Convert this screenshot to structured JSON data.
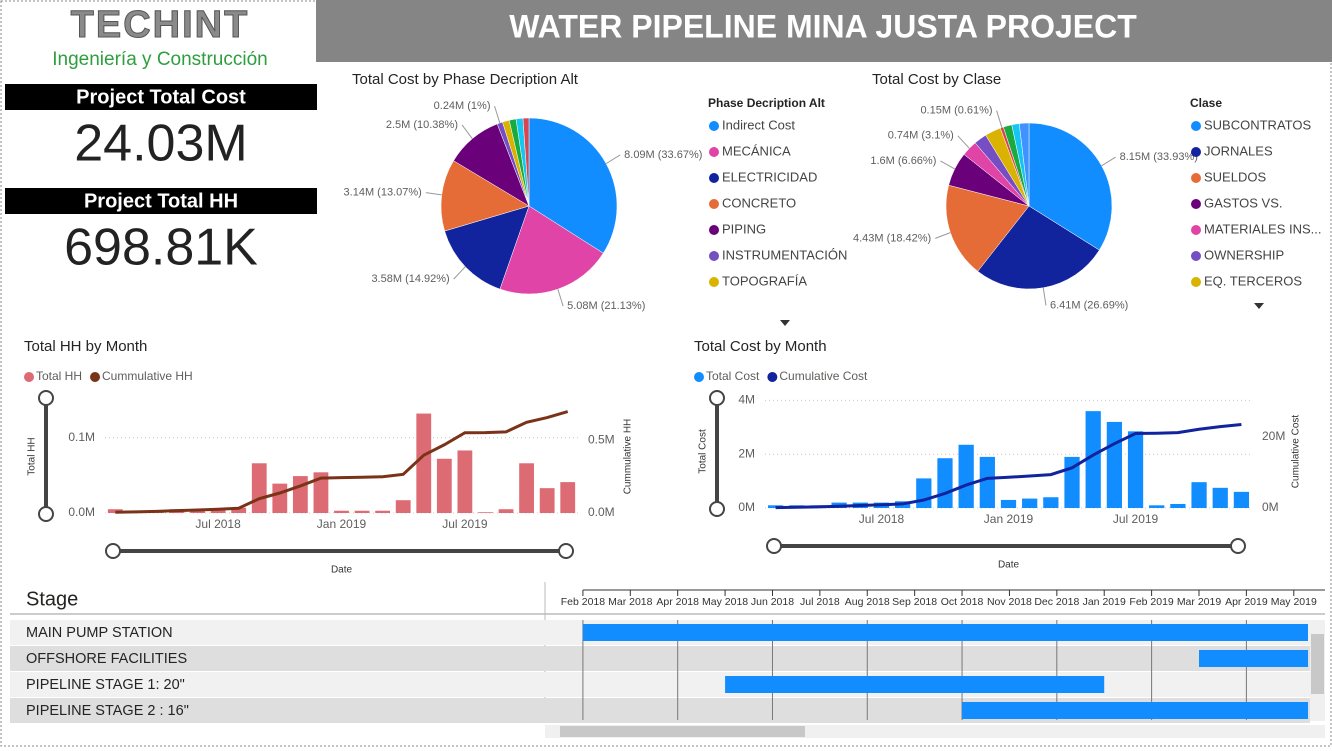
{
  "header": {
    "logo": "TECHINT",
    "logo_subtitle": "Ingeniería y Construcción",
    "title": "WATER PIPELINE MINA JUSTA PROJECT"
  },
  "kpis": [
    {
      "label": "Project Total Cost",
      "value": "24.03M"
    },
    {
      "label": "Project Total HH",
      "value": "698.81K"
    }
  ],
  "chart_data": [
    {
      "type": "pie",
      "title": "Total Cost by Phase Decription Alt",
      "legend_title": "Phase Decription Alt",
      "categories": [
        "Indirect Cost",
        "MECÁNICA",
        "ELECTRICIDAD",
        "CONCRETO",
        "PIPING",
        "INSTRUMENTACIÓN",
        "TOPOGRAFÍA",
        null,
        null,
        null
      ],
      "values": [
        8.09,
        5.08,
        3.58,
        3.14,
        2.5,
        0.24,
        0.3,
        0.3,
        0.3,
        0.26
      ],
      "value_labels": [
        "8.09M (33.67%)",
        "5.08M (21.13%)",
        "3.58M (14.92%)",
        "3.14M (13.07%)",
        "2.5M (10.38%)",
        "0.24M (1%)",
        null,
        null,
        null,
        null
      ],
      "colors": [
        "#118dff",
        "#e044a7",
        "#12239e",
        "#e66c37",
        "#6b007b",
        "#744ec2",
        "#d9b300",
        "#1aab40",
        "#15c6f4",
        "#d64550"
      ]
    },
    {
      "type": "pie",
      "title": "Total Cost by Clase",
      "legend_title": "Clase",
      "categories": [
        "SUBCONTRATOS",
        "JORNALES",
        "SUELDOS",
        "GASTOS VS.",
        "MATERIALES INS...",
        "OWNERSHIP",
        "EQ. TERCEROS",
        null,
        null,
        null,
        null
      ],
      "values": [
        8.15,
        6.41,
        4.43,
        1.6,
        0.74,
        0.6,
        0.75,
        0.15,
        0.4,
        0.35,
        0.45
      ],
      "value_labels": [
        "8.15M (33.93%)",
        "6.41M (26.69%)",
        "4.43M (18.42%)",
        "1.6M (6.66%)",
        "0.74M (3.1%)",
        null,
        null,
        "0.15M (0.61%)",
        null,
        null,
        null
      ],
      "colors": [
        "#118dff",
        "#12239e",
        "#e66c37",
        "#6b007b",
        "#e044a7",
        "#744ec2",
        "#d9b300",
        "#d64550",
        "#1aab40",
        "#15c6f4",
        "#4092ff"
      ]
    },
    {
      "type": "combo",
      "title": "Total HH by Month",
      "xlabel": "Date",
      "ylabel": "Total HH",
      "y2label": "Cummulative HH",
      "grid": true,
      "categories": [
        null,
        null,
        null,
        null,
        null,
        "Jul 2018",
        null,
        null,
        null,
        null,
        null,
        "Jan 2019",
        null,
        null,
        null,
        null,
        null,
        "Jul 2019",
        null,
        null,
        null,
        null,
        null
      ],
      "ylim": [
        0,
        0.15
      ],
      "yticks": [
        {
          "value": 0,
          "label": "0.0M"
        },
        {
          "value": 0.1,
          "label": "0.1M"
        }
      ],
      "y2lim": [
        0,
        0.78
      ],
      "y2ticks": [
        {
          "value": 0,
          "label": "0.0M"
        },
        {
          "value": 0.5,
          "label": "0.5M"
        }
      ],
      "series": [
        {
          "name": "Total HH",
          "color": "#dd6b73",
          "kind": "bar",
          "values": [
            0.005,
            0.003,
            0.003,
            0.005,
            0.005,
            0.005,
            0.007,
            0.066,
            0.039,
            0.049,
            0.054,
            0.003,
            0.003,
            0.003,
            0.017,
            0.132,
            0.072,
            0.083,
            0.001,
            0.005,
            0.066,
            0.033,
            0.041
          ]
        },
        {
          "name": "Cummulative HH",
          "color": "#7a3319",
          "kind": "line",
          "axis": "y2",
          "values": [
            0.005,
            0.008,
            0.011,
            0.016,
            0.021,
            0.026,
            0.033,
            0.099,
            0.138,
            0.187,
            0.241,
            0.244,
            0.247,
            0.25,
            0.267,
            0.399,
            0.471,
            0.554,
            0.555,
            0.56,
            0.626,
            0.659,
            0.7
          ]
        }
      ]
    },
    {
      "type": "combo",
      "title": "Total Cost by Month",
      "xlabel": "Date",
      "ylabel": "Total Cost",
      "y2label": "Cumulative Cost",
      "grid": true,
      "categories": [
        null,
        null,
        null,
        null,
        null,
        "Jul 2018",
        null,
        null,
        null,
        null,
        null,
        "Jan 2019",
        null,
        null,
        null,
        null,
        null,
        "Jul 2019",
        null,
        null,
        null,
        null,
        null
      ],
      "ylim": [
        0,
        4.2
      ],
      "yticks": [
        {
          "value": 0,
          "label": "0M"
        },
        {
          "value": 2,
          "label": "2M"
        },
        {
          "value": 4,
          "label": "4M"
        }
      ],
      "y2lim": [
        0,
        31.8
      ],
      "y2ticks": [
        {
          "value": 0,
          "label": "0M"
        },
        {
          "value": 20,
          "label": "20M"
        }
      ],
      "series": [
        {
          "name": "Total Cost",
          "color": "#118dff",
          "kind": "bar",
          "values": [
            0.1,
            0.1,
            0.1,
            0.2,
            0.2,
            0.2,
            0.25,
            1.1,
            1.85,
            2.35,
            1.9,
            0.3,
            0.35,
            0.4,
            1.9,
            3.6,
            3.2,
            2.85,
            0.1,
            0.15,
            0.96,
            0.75,
            0.6
          ]
        },
        {
          "name": "Cumulative Cost",
          "color": "#12239e",
          "kind": "line",
          "axis": "y2",
          "values": [
            0.1,
            0.2,
            0.3,
            0.5,
            0.7,
            0.9,
            1.15,
            2.25,
            4.1,
            6.45,
            8.35,
            8.65,
            9.0,
            9.4,
            11.3,
            14.9,
            18.1,
            20.95,
            21.05,
            21.2,
            22.16,
            22.91,
            23.51
          ]
        }
      ]
    }
  ],
  "gantt": {
    "header": "Stage",
    "color": "#118dff",
    "xlim": [
      -0.8,
      15.3
    ],
    "xticks": [
      {
        "value": 0,
        "label": "Feb 2018"
      },
      {
        "value": 1,
        "label": "Mar 2018"
      },
      {
        "value": 2,
        "label": "Apr 2018"
      },
      {
        "value": 3,
        "label": "May 2018"
      },
      {
        "value": 4,
        "label": "Jun 2018"
      },
      {
        "value": 5,
        "label": "Jul 2018"
      },
      {
        "value": 6,
        "label": "Aug 2018"
      },
      {
        "value": 7,
        "label": "Sep 2018"
      },
      {
        "value": 8,
        "label": "Oct 2018"
      },
      {
        "value": 9,
        "label": "Nov 2018"
      },
      {
        "value": 10,
        "label": "Dec 2018"
      },
      {
        "value": 11,
        "label": "Jan 2019"
      },
      {
        "value": 12,
        "label": "Feb 2019"
      },
      {
        "value": 13,
        "label": "Mar 2019"
      },
      {
        "value": 14,
        "label": "Apr 2019"
      },
      {
        "value": 15,
        "label": "May 2019"
      }
    ],
    "rows": [
      {
        "name": "MAIN PUMP STATION",
        "start": 0,
        "end": 15.3
      },
      {
        "name": "OFFSHORE FACILITIES",
        "start": 13,
        "end": 15.3
      },
      {
        "name": "PIPELINE STAGE 1: 20\"",
        "start": 3,
        "end": 11
      },
      {
        "name": "PIPELINE STAGE 2 : 16\"",
        "start": 8,
        "end": 15.3
      }
    ]
  }
}
